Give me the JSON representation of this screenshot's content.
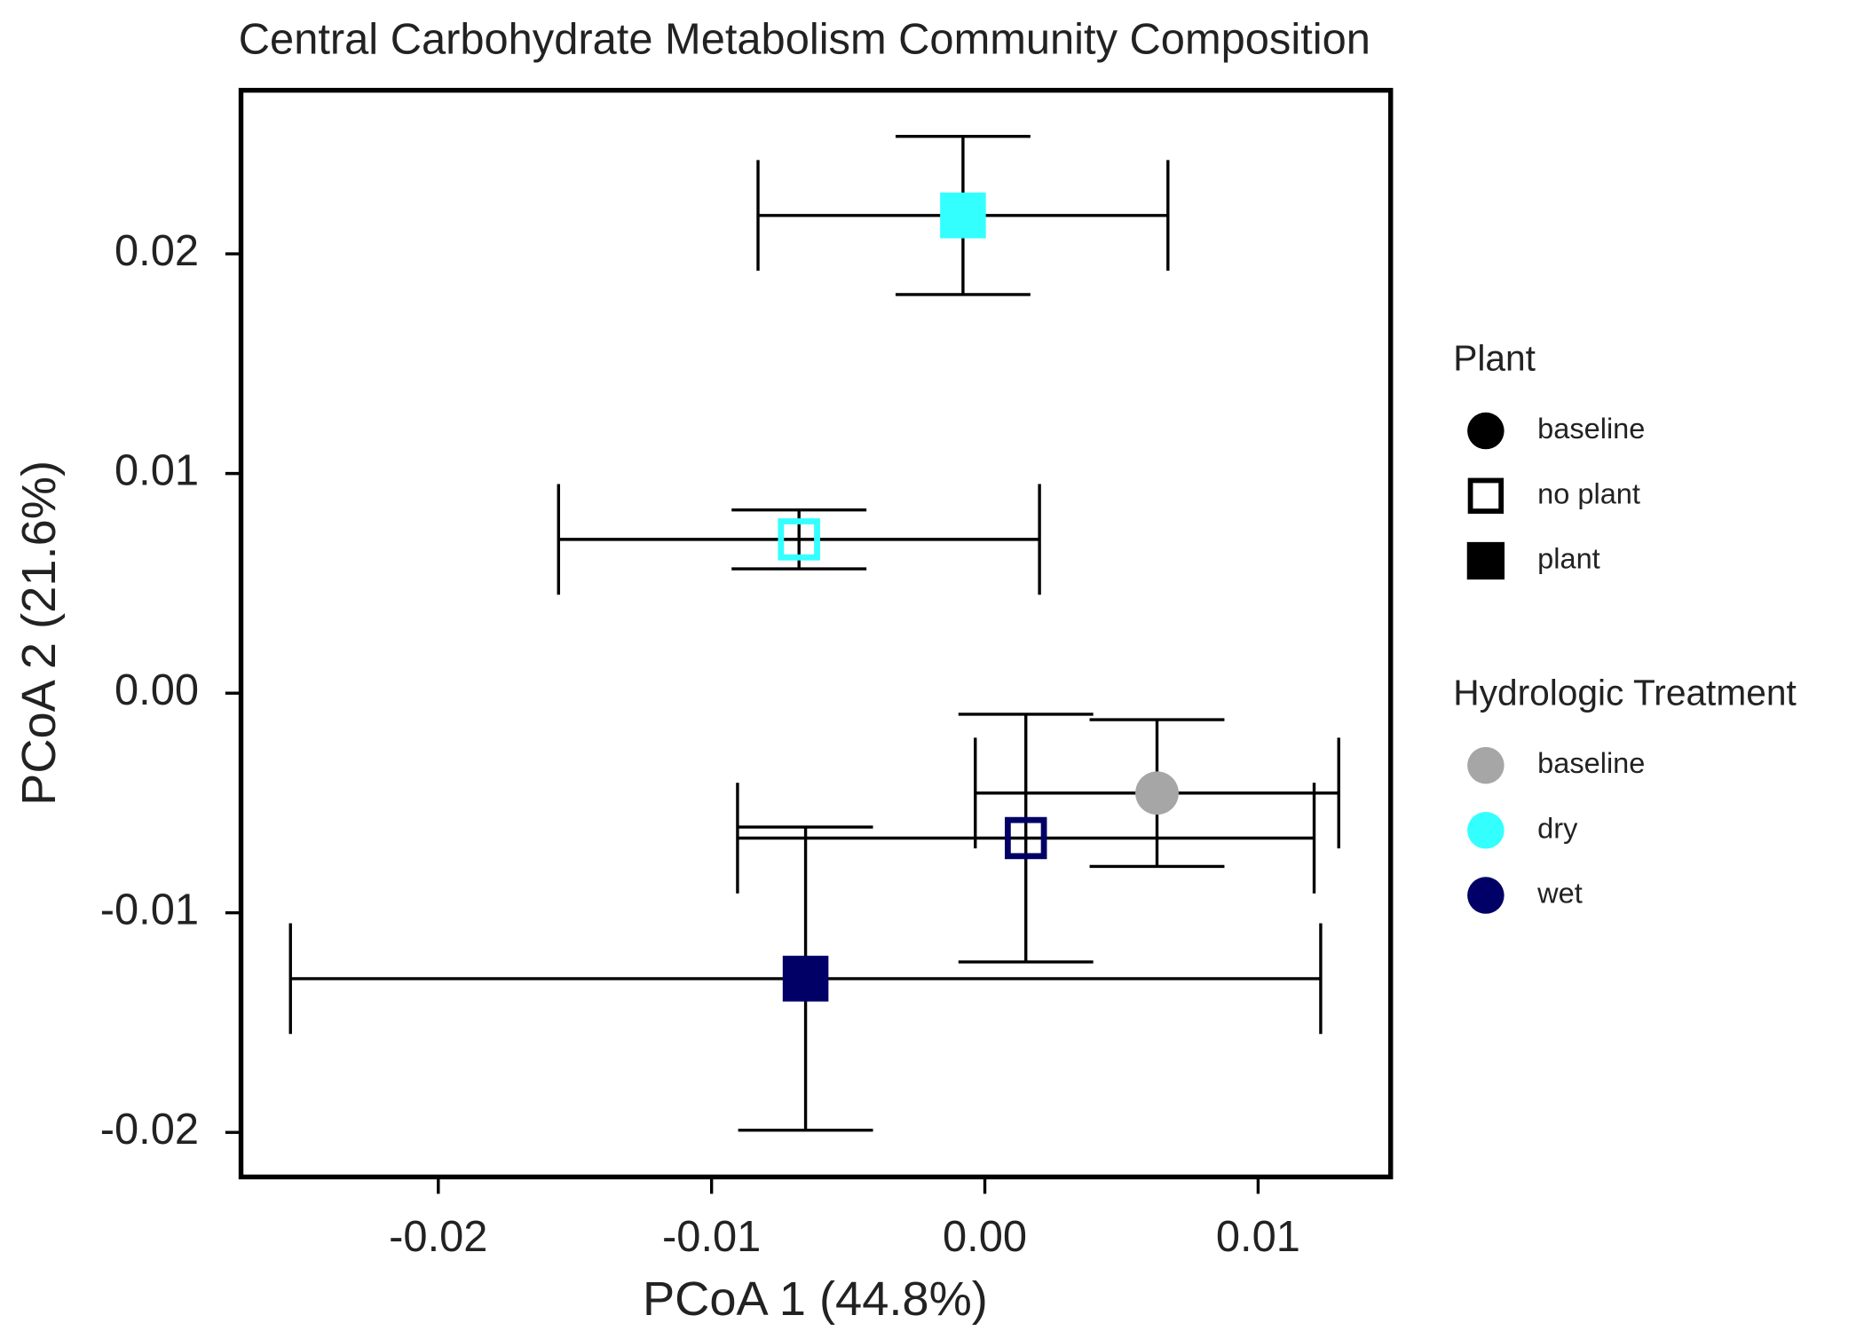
{
  "chart_data": {
    "type": "scatter",
    "title": "Central Carbohydrate Metabolism Community Composition",
    "x_label": "PCoA 1 (44.8%)",
    "y_label": "PCoA 2 (21.6%)",
    "xlim": [
      -0.02722,
      0.01485
    ],
    "ylim": [
      -0.02203,
      0.02745
    ],
    "xticks": [
      -0.02,
      -0.01,
      {
        "value": 0,
        "label": "0.00"
      },
      0.01
    ],
    "yticks": [
      -0.02,
      -0.01,
      {
        "value": 0,
        "label": "0.00"
      },
      0.01,
      0.02
    ],
    "points": [
      {
        "plant": "plant",
        "treatment": "dry",
        "x": -0.0008,
        "y": 0.02175,
        "xerr": 0.0075,
        "yerr": 0.0036
      },
      {
        "plant": "no plant",
        "treatment": "dry",
        "x": -0.0068,
        "y": 0.007,
        "xerr": 0.0088,
        "yerr": 0.00134
      },
      {
        "plant": "baseline",
        "treatment": "baseline",
        "x": 0.0063,
        "y": -0.00455,
        "xerr": 0.00665,
        "yerr": 0.00334
      },
      {
        "plant": "no plant",
        "treatment": "wet",
        "x": 0.0015,
        "y": -0.0066,
        "xerr": 0.01055,
        "yerr": 0.00564
      },
      {
        "plant": "plant",
        "treatment": "wet",
        "x": -0.00656,
        "y": -0.013,
        "xerr": 0.01885,
        "yerr": 0.0069
      }
    ],
    "legends": [
      {
        "title": "Plant",
        "items": [
          {
            "label": "baseline",
            "shape": "circle"
          },
          {
            "label": "no plant",
            "shape": "open-square"
          },
          {
            "label": "plant",
            "shape": "square"
          }
        ]
      },
      {
        "title": "Hydrologic Treatment",
        "items": [
          {
            "label": "baseline",
            "color": "#a6a6a6"
          },
          {
            "label": "dry",
            "color": "#33ffff"
          },
          {
            "label": "wet",
            "color": "#000066"
          }
        ]
      }
    ]
  }
}
